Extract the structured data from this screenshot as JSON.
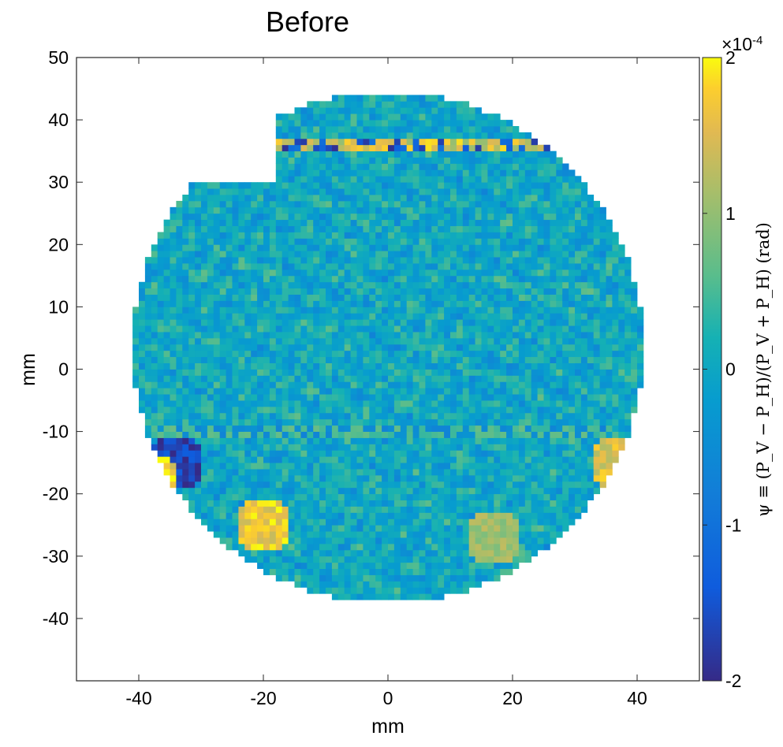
{
  "chart_data": {
    "type": "heatmap",
    "title": "Before",
    "xlabel": "mm",
    "ylabel": "mm",
    "xlim": [
      -50,
      50
    ],
    "ylim": [
      -50,
      50
    ],
    "x_ticks": [
      -40,
      -20,
      0,
      20,
      40
    ],
    "y_ticks": [
      -40,
      -30,
      -20,
      -10,
      0,
      10,
      20,
      30,
      40,
      50
    ],
    "colorbar": {
      "label": "ψ ≡ (P_V − P_H)/(P_V + P_H) (rad)",
      "exponent_label": "×10",
      "exponent_power": "-4",
      "range": [
        -2,
        2
      ],
      "ticks": [
        -2,
        -1,
        0,
        1,
        2
      ],
      "colormap": "parula"
    },
    "domain": {
      "shape": "circle with notch",
      "center": [
        0,
        3.5
      ],
      "radius": 41,
      "notch_x_range": [
        -43,
        -18
      ],
      "notch_above_y": 30
    },
    "features": [
      {
        "desc": "horizontal yellow line",
        "y": 36.3,
        "x_range": [
          -18,
          30
        ],
        "value": 1.6
      },
      {
        "desc": "horizontal blue/yellow line",
        "y": -10.2,
        "x_range": [
          -38,
          35
        ],
        "value": 0.6
      },
      {
        "desc": "blue cluster",
        "center": [
          -34,
          -15
        ],
        "value": -1.9
      },
      {
        "desc": "yellow rim",
        "center": [
          -38,
          -18
        ],
        "value": 1.9
      },
      {
        "desc": "yellow blob",
        "center": [
          -20,
          -25
        ],
        "value": 1.9
      },
      {
        "desc": "yellow rim",
        "center": [
          37,
          -15
        ],
        "value": 1.7
      },
      {
        "desc": "diagonal yellow streak",
        "center": [
          17,
          -27
        ],
        "value": 1.2
      }
    ]
  }
}
